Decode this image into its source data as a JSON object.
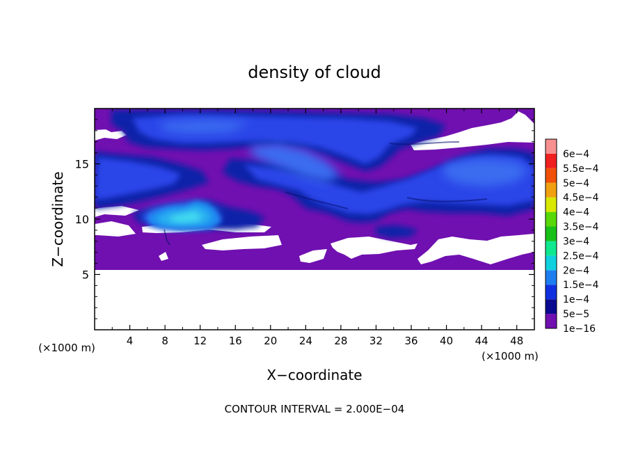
{
  "chart_data": {
    "type": "heatmap",
    "title": "density of cloud",
    "xlabel": "X−coordinate",
    "ylabel": "Z−coordinate",
    "x_unit": "(×1000 m)",
    "z_unit": "(×1000 m)",
    "xlim": [
      0,
      50
    ],
    "ylim": [
      0,
      20
    ],
    "x_ticks": [
      4,
      8,
      12,
      16,
      20,
      24,
      28,
      32,
      36,
      40,
      44,
      48
    ],
    "y_ticks": [
      5,
      10,
      15
    ],
    "footer": "CONTOUR INTERVAL = 2.000E−04",
    "colorbar": [
      {
        "label": "1e−16",
        "color": "#7010b0"
      },
      {
        "label": "5e−5",
        "color": "#0a0a90"
      },
      {
        "label": "1e−4",
        "color": "#1030e0"
      },
      {
        "label": "1.5e−4",
        "color": "#1e7ef0"
      },
      {
        "label": "2e−4",
        "color": "#10d0e0"
      },
      {
        "label": "2.5e−4",
        "color": "#10e890"
      },
      {
        "label": "3e−4",
        "color": "#18c018"
      },
      {
        "label": "3.5e−4",
        "color": "#58d808"
      },
      {
        "label": "4e−4",
        "color": "#d8e800"
      },
      {
        "label": "4.5e−4",
        "color": "#f0a010"
      },
      {
        "label": "5e−4",
        "color": "#f05008"
      },
      {
        "label": "5.5e−4",
        "color": "#f02020"
      },
      {
        "label": "6e−4",
        "color": "#f89090"
      }
    ],
    "cloud_field": {
      "cloud_base_km": 5.3,
      "cloud_top_km": 19.6,
      "max_density": "1.5e−4",
      "max_region_x_km": [
        6,
        15
      ],
      "max_region_z_km": [
        9.7,
        11.8
      ]
    }
  }
}
